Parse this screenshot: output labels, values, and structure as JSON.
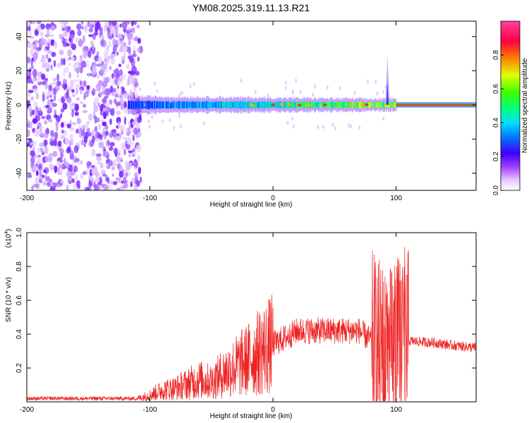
{
  "chart_data": [
    {
      "type": "heatmap",
      "title": "YM08.2025.319.11.13.R21",
      "xlabel": "Height of straight line (km)",
      "ylabel": "Frequency (Hz)",
      "xlim": [
        -200,
        165
      ],
      "ylim": [
        -50,
        49
      ],
      "x_ticks": [
        "-200",
        "-100",
        "0",
        "100"
      ],
      "x_tick_values": [
        -200,
        -100,
        0,
        100
      ],
      "y_ticks": [
        "40",
        "20",
        "0",
        "-20",
        "-40"
      ],
      "y_tick_values": [
        40,
        20,
        0,
        -20,
        -40
      ],
      "colorbar": {
        "label": "Normalized spectral amplitude",
        "range": [
          0,
          1
        ],
        "ticks": [
          "0.0",
          "0.2",
          "0.4",
          "0.6",
          "0.8"
        ],
        "tick_values": [
          0.0,
          0.2,
          0.4,
          0.6,
          0.8
        ]
      },
      "features": {
        "noise_region_x": [
          -200,
          -113
        ],
        "signal_band_x": [
          -118,
          100
        ],
        "steady_line_x": [
          100,
          165
        ],
        "steady_line_frequency_hz": 0
      }
    },
    {
      "type": "line",
      "xlabel": "Height of straight line (km)",
      "ylabel": "SNR (10 * v/v)",
      "y_scale_label": "(x10",
      "y_scale_exponent": "4",
      "y_scale_suffix": ")",
      "xlim": [
        -200,
        165
      ],
      "ylim": [
        0,
        1.0
      ],
      "x_ticks": [
        "-200",
        "-100",
        "0",
        "100"
      ],
      "x_tick_values": [
        -200,
        -100,
        0,
        100
      ],
      "y_ticks": [
        "1.0",
        "0.8",
        "0.6",
        "0.4",
        "0.2"
      ],
      "y_tick_values": [
        1.0,
        0.8,
        0.6,
        0.4,
        0.2
      ],
      "color": "#ee2222",
      "series": [
        {
          "name": "SNR",
          "x": [
            -200,
            -150,
            -110,
            -100,
            -90,
            -80,
            -60,
            -50,
            -40,
            -30,
            -20,
            -10,
            0,
            10,
            20,
            30,
            40,
            50,
            60,
            70,
            80,
            85,
            90,
            95,
            100,
            105,
            110,
            130,
            150,
            165
          ],
          "y": [
            0.02,
            0.02,
            0.02,
            0.04,
            0.07,
            0.08,
            0.13,
            0.12,
            0.17,
            0.21,
            0.25,
            0.3,
            0.34,
            0.38,
            0.42,
            0.42,
            0.42,
            0.42,
            0.42,
            0.42,
            0.36,
            0.32,
            0.25,
            0.25,
            0.3,
            0.38,
            0.36,
            0.35,
            0.33,
            0.32
          ]
        }
      ],
      "notes": "Dense oscillating trace; spikes reach ~1.0 near x=95-105"
    }
  ]
}
